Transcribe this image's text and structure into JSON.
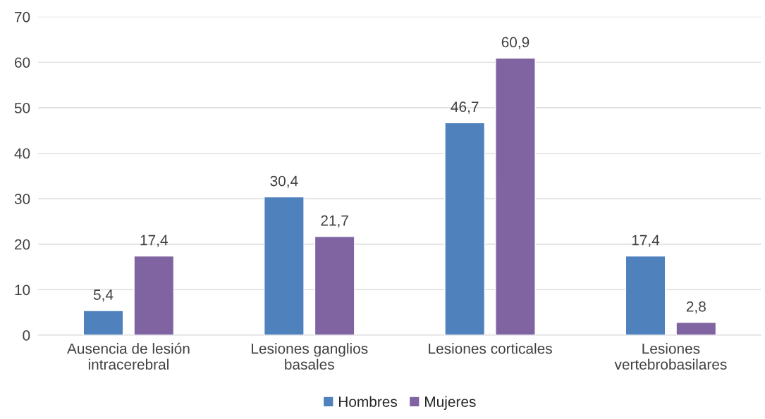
{
  "chart_data": {
    "type": "bar",
    "categories": [
      "Ausencia de lesión\nintracerebral",
      "Lesiones ganglios\nbasales",
      "Lesiones corticales",
      "Lesiones\nvertebrobasilares"
    ],
    "series": [
      {
        "name": "Hombres",
        "color": "#4f81bd",
        "values": [
          5.4,
          30.4,
          46.7,
          17.4
        ],
        "value_labels": [
          "5,4",
          "30,4",
          "46,7",
          "17,4"
        ]
      },
      {
        "name": "Mujeres",
        "color": "#8064a2",
        "values": [
          17.4,
          21.7,
          60.9,
          2.8
        ],
        "value_labels": [
          "17,4",
          "21,7",
          "60,9",
          "2,8"
        ]
      }
    ],
    "ylim": [
      0,
      70
    ],
    "yticks": [
      0,
      10,
      20,
      30,
      40,
      50,
      60,
      70
    ],
    "grid": "y",
    "legend": "bottom"
  }
}
